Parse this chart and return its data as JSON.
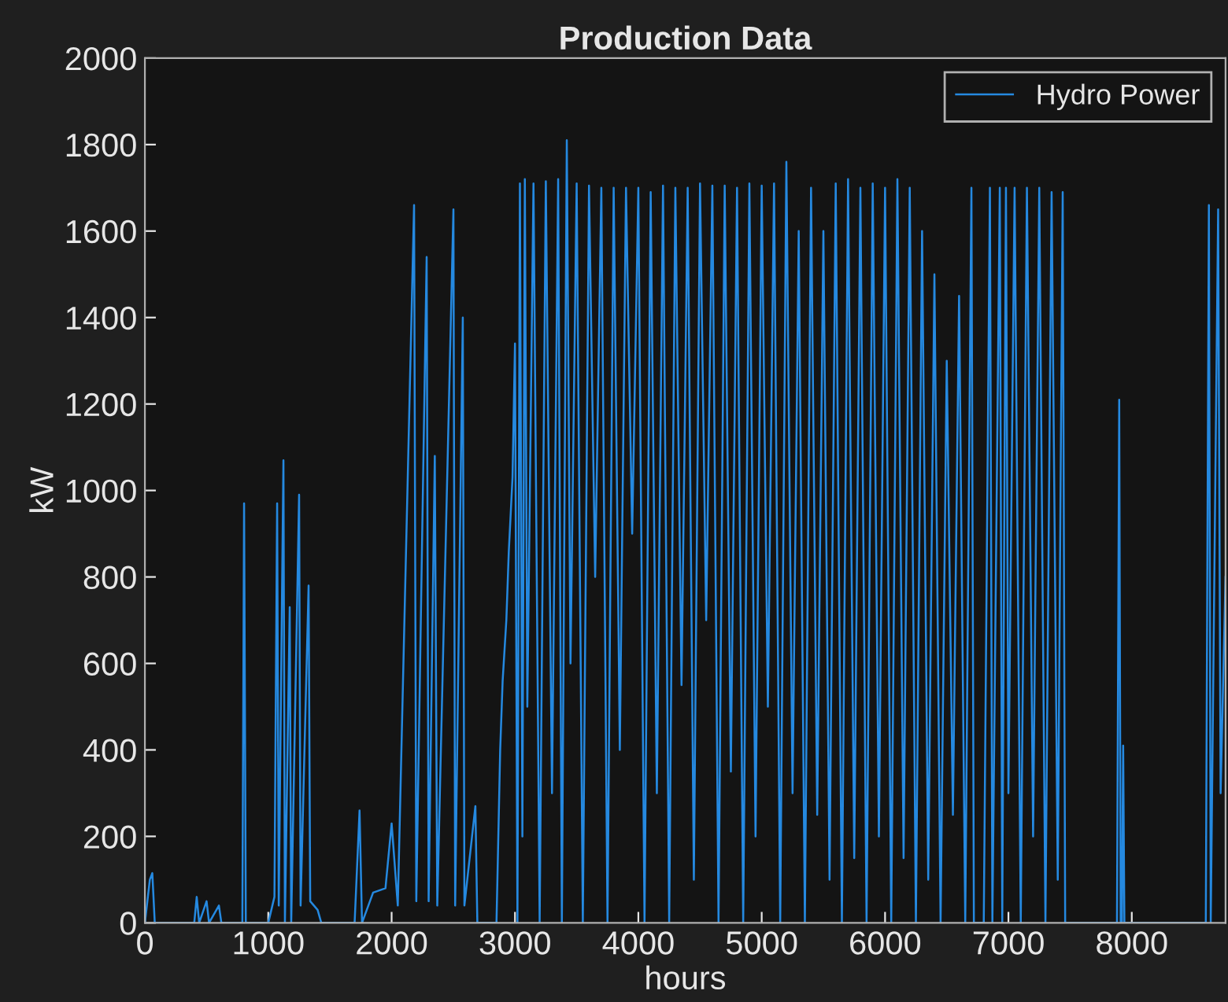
{
  "chart_data": {
    "type": "line",
    "title": "Production Data",
    "xlabel": "hours",
    "ylabel": "kW",
    "xlim": [
      0,
      8760
    ],
    "ylim": [
      0,
      2000
    ],
    "xticks": [
      0,
      1000,
      2000,
      3000,
      4000,
      5000,
      6000,
      7000,
      8000
    ],
    "yticks": [
      0,
      200,
      400,
      600,
      800,
      1000,
      1200,
      1400,
      1600,
      1800,
      2000
    ],
    "grid": false,
    "legend": "top right",
    "series": [
      {
        "name": "Hydro Power",
        "color": "#2589e0",
        "x": [
          0,
          40,
          60,
          80,
          400,
          420,
          440,
          500,
          520,
          600,
          620,
          790,
          804,
          818,
          1000,
          1050,
          1072,
          1085,
          1123,
          1135,
          1174,
          1186,
          1250,
          1262,
          1327,
          1340,
          1400,
          1430,
          1700,
          1740,
          1760,
          1850,
          1950,
          2000,
          2050,
          2182,
          2200,
          2284,
          2300,
          2350,
          2370,
          2501,
          2515,
          2577,
          2590,
          2679,
          2695,
          2850,
          2880,
          2900,
          2930,
          2950,
          2980,
          3000,
          3020,
          3040,
          3060,
          3080,
          3100,
          3150,
          3200,
          3250,
          3300,
          3350,
          3380,
          3420,
          3450,
          3500,
          3550,
          3600,
          3650,
          3700,
          3750,
          3800,
          3850,
          3900,
          3950,
          4000,
          4050,
          4100,
          4150,
          4200,
          4250,
          4300,
          4350,
          4400,
          4450,
          4500,
          4550,
          4600,
          4650,
          4700,
          4750,
          4800,
          4850,
          4900,
          4950,
          5000,
          5050,
          5100,
          5150,
          5200,
          5250,
          5300,
          5350,
          5400,
          5450,
          5500,
          5550,
          5600,
          5650,
          5700,
          5750,
          5800,
          5850,
          5900,
          5950,
          6000,
          6050,
          6100,
          6150,
          6200,
          6250,
          6300,
          6350,
          6400,
          6450,
          6500,
          6550,
          6600,
          6650,
          6700,
          6720,
          6800,
          6850,
          6870,
          6930,
          6950,
          6980,
          7000,
          7050,
          7100,
          7150,
          7200,
          7250,
          7300,
          7350,
          7400,
          7440,
          7460,
          7880,
          7898,
          7910,
          7920,
          7930,
          7940,
          8600,
          8625,
          8640,
          8700,
          8720,
          8760
        ],
        "values": [
          0,
          100,
          115,
          0,
          0,
          60,
          0,
          50,
          0,
          40,
          0,
          0,
          970,
          0,
          0,
          60,
          970,
          40,
          1070,
          0,
          730,
          0,
          990,
          40,
          780,
          50,
          30,
          0,
          0,
          260,
          0,
          70,
          80,
          230,
          40,
          1660,
          50,
          1540,
          50,
          1080,
          40,
          1650,
          40,
          1400,
          40,
          270,
          0,
          0,
          400,
          560,
          700,
          860,
          1030,
          1340,
          0,
          1710,
          200,
          1720,
          500,
          1710,
          0,
          1715,
          300,
          1720,
          0,
          1810,
          600,
          1710,
          0,
          1705,
          800,
          1700,
          0,
          1700,
          400,
          1700,
          900,
          1700,
          0,
          1690,
          300,
          1705,
          0,
          1700,
          550,
          1700,
          100,
          1710,
          700,
          1705,
          0,
          1705,
          350,
          1700,
          0,
          1710,
          200,
          1705,
          500,
          1710,
          0,
          1760,
          300,
          1600,
          0,
          1700,
          250,
          1600,
          100,
          1710,
          0,
          1720,
          150,
          1700,
          0,
          1710,
          200,
          1700,
          0,
          1720,
          150,
          1700,
          0,
          1600,
          100,
          1500,
          0,
          1300,
          250,
          1450,
          0,
          1700,
          0,
          0,
          1700,
          0,
          1700,
          0,
          1700,
          300,
          1700,
          0,
          1700,
          200,
          1700,
          0,
          1690,
          100,
          1690,
          0,
          0,
          1210,
          0,
          0,
          410,
          0,
          0,
          1660,
          0,
          1650,
          300,
          800
        ]
      }
    ]
  }
}
